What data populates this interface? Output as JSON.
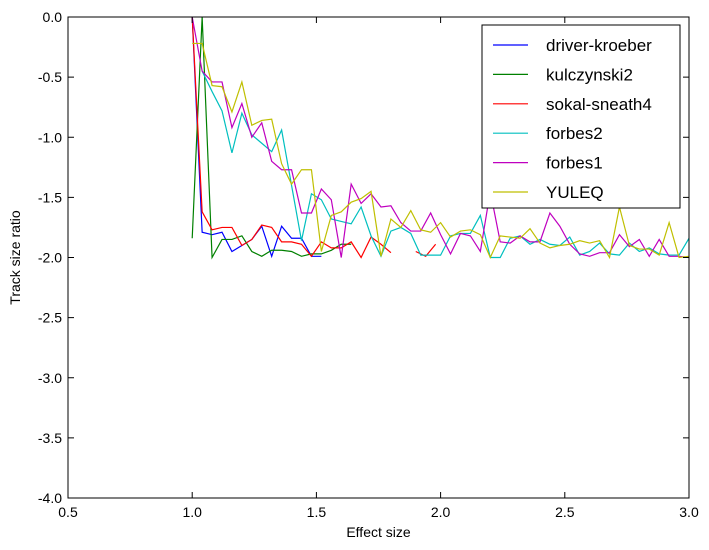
{
  "chart_data": {
    "type": "line",
    "xlabel": "Effect size",
    "ylabel": "Track size ratio",
    "xlim": [
      0.5,
      3.0
    ],
    "ylim": [
      -4.0,
      0.0
    ],
    "xticks": [
      "0.5",
      "1.0",
      "1.5",
      "2.0",
      "2.5",
      "3.0"
    ],
    "yticks": [
      "0.0",
      "-0.5",
      "-1.0",
      "-1.5",
      "-2.0",
      "-2.5",
      "-3.0",
      "-3.5",
      "-4.0"
    ],
    "legend_position": "top-right",
    "grid": false,
    "series": [
      {
        "name": "driver-kroeber",
        "color": "#0000ff",
        "x": [
          1.0,
          1.04,
          1.08,
          1.12,
          1.16,
          1.2,
          1.24,
          1.28,
          1.32,
          1.36,
          1.4,
          1.44,
          1.48,
          1.52
        ],
        "y": [
          0.0,
          -1.79,
          -1.81,
          -1.79,
          -1.95,
          -1.9,
          -1.85,
          -1.74,
          -1.99,
          -1.74,
          -1.84,
          -1.84,
          -1.99,
          -1.99
        ]
      },
      {
        "name": "kulczynski2",
        "color": "#008000",
        "x": [
          1.0,
          1.04,
          1.08,
          1.12,
          1.16,
          1.2,
          1.24,
          1.28,
          1.32,
          1.36,
          1.4,
          1.44,
          1.48,
          1.52,
          1.56,
          1.6,
          1.64
        ],
        "y": [
          -1.84,
          0.0,
          -2.0,
          -1.85,
          -1.85,
          -1.82,
          -1.95,
          -1.99,
          -1.94,
          -1.94,
          -1.95,
          -1.99,
          -1.97,
          -1.97,
          -1.94,
          -1.89,
          -1.89
        ]
      },
      {
        "name": "sokal-sneath4",
        "color": "#ff0000",
        "x": [
          1.0,
          1.04,
          1.08,
          1.12,
          1.16,
          1.2,
          1.24,
          1.28,
          1.32,
          1.36,
          1.4,
          1.44,
          1.48,
          1.52,
          1.56,
          1.6,
          1.64,
          1.68,
          1.72,
          1.76,
          1.8,
          null,
          1.9,
          1.94,
          1.98
        ],
        "y": [
          0.0,
          -1.62,
          -1.77,
          -1.75,
          -1.75,
          -1.9,
          -1.85,
          -1.73,
          -1.75,
          -1.87,
          -1.87,
          -1.89,
          -1.99,
          -1.87,
          -1.92,
          -1.92,
          -1.87,
          -2.0,
          -1.83,
          -1.89,
          -1.96,
          null,
          -1.95,
          -1.99,
          -1.89
        ]
      },
      {
        "name": "forbes2",
        "color": "#00bfbf",
        "x": [
          1.04,
          1.08,
          1.12,
          1.16,
          1.2,
          1.24,
          1.28,
          1.32,
          1.36,
          1.4,
          1.44,
          1.48,
          1.52,
          1.56,
          1.6,
          1.64,
          1.68,
          1.72,
          1.76,
          1.8,
          1.84,
          1.88,
          1.92,
          1.96,
          2.0,
          2.04,
          2.08,
          2.12,
          2.16,
          2.2,
          2.24,
          2.28,
          2.32,
          2.36,
          2.4,
          2.44,
          2.48,
          2.52,
          2.56,
          2.6,
          2.64,
          2.68,
          2.72,
          2.76,
          2.8,
          2.84,
          2.88,
          2.92,
          2.96,
          3.0
        ],
        "y": [
          -0.45,
          -0.62,
          -0.78,
          -1.13,
          -0.8,
          -0.98,
          -1.05,
          -1.12,
          -0.94,
          -1.4,
          -1.86,
          -1.47,
          -1.52,
          -1.68,
          -1.7,
          -1.72,
          -1.58,
          -1.82,
          -1.99,
          -1.78,
          -1.75,
          -1.8,
          -1.98,
          -1.98,
          -1.98,
          -1.82,
          -1.8,
          -1.8,
          -1.65,
          -2.0,
          -2.0,
          -1.84,
          -1.82,
          -1.89,
          -1.85,
          -1.89,
          -1.9,
          -1.83,
          -1.98,
          -1.95,
          -1.88,
          -1.97,
          -1.98,
          -1.88,
          -1.95,
          -1.92,
          -1.97,
          -1.98,
          -1.98,
          -1.84
        ]
      },
      {
        "name": "forbes1",
        "color": "#bf00bf",
        "x": [
          1.0,
          1.04,
          1.08,
          1.12,
          1.16,
          1.2,
          1.24,
          1.28,
          1.32,
          1.36,
          1.4,
          1.44,
          1.48,
          1.52,
          1.56,
          1.6,
          1.64,
          1.68,
          1.72,
          1.76,
          1.8,
          1.84,
          1.88,
          1.92,
          1.96,
          2.0,
          2.04,
          2.08,
          2.12,
          2.16,
          2.2,
          2.24,
          2.28,
          2.32,
          2.36,
          2.4,
          2.44,
          2.48,
          2.52,
          2.56,
          2.6,
          2.64,
          2.68,
          2.72,
          2.76,
          2.8,
          2.84,
          2.88,
          2.92,
          2.96,
          3.0
        ],
        "y": [
          0.0,
          -0.45,
          -0.54,
          -0.54,
          -0.92,
          -0.72,
          -1.0,
          -0.88,
          -1.2,
          -1.27,
          -1.27,
          -1.63,
          -1.63,
          -1.43,
          -1.52,
          -2.0,
          -1.39,
          -1.55,
          -1.47,
          -1.58,
          -1.57,
          -1.71,
          -1.78,
          -1.78,
          -1.63,
          -1.81,
          -1.97,
          -1.8,
          -1.82,
          -1.95,
          -1.45,
          -1.87,
          -1.88,
          -1.82,
          -1.87,
          -1.87,
          -1.63,
          -1.74,
          -1.89,
          -1.97,
          -1.99,
          -1.96,
          -1.96,
          -1.81,
          -1.91,
          -1.85,
          -1.99,
          -1.85,
          -1.99,
          -1.99,
          -2.0
        ]
      },
      {
        "name": "YULEQ",
        "color": "#bfbf00",
        "x": [
          1.0,
          1.04,
          1.08,
          1.12,
          1.16,
          1.2,
          1.24,
          1.28,
          1.32,
          1.36,
          1.4,
          1.44,
          1.48,
          1.52,
          1.56,
          1.6,
          1.64,
          1.68,
          1.72,
          1.76,
          1.8,
          1.84,
          1.88,
          1.92,
          1.96,
          2.0,
          2.04,
          2.08,
          2.12,
          2.16,
          2.2,
          2.24,
          2.28,
          2.32,
          2.36,
          2.4,
          2.44,
          2.48,
          2.52,
          2.56,
          2.6,
          2.64,
          2.68,
          2.72,
          2.76,
          2.8,
          2.84,
          2.88,
          2.92,
          2.96,
          3.0
        ],
        "y": [
          -0.22,
          -0.22,
          -0.57,
          -0.58,
          -0.79,
          -0.54,
          -0.9,
          -0.86,
          -0.85,
          -1.22,
          -1.39,
          -1.27,
          -1.27,
          -1.95,
          -1.65,
          -1.62,
          -1.54,
          -1.51,
          -1.45,
          -1.99,
          -1.68,
          -1.75,
          -1.61,
          -1.77,
          -1.79,
          -1.71,
          -1.83,
          -1.78,
          -1.77,
          -1.81,
          -2.0,
          -1.82,
          -1.83,
          -1.84,
          -1.76,
          -1.88,
          -1.92,
          -1.9,
          -1.89,
          -1.86,
          -1.88,
          -1.86,
          -2.0,
          -1.58,
          -1.9,
          -1.93,
          -1.93,
          -1.98,
          -1.71,
          -2.0,
          -1.99
        ]
      }
    ]
  }
}
